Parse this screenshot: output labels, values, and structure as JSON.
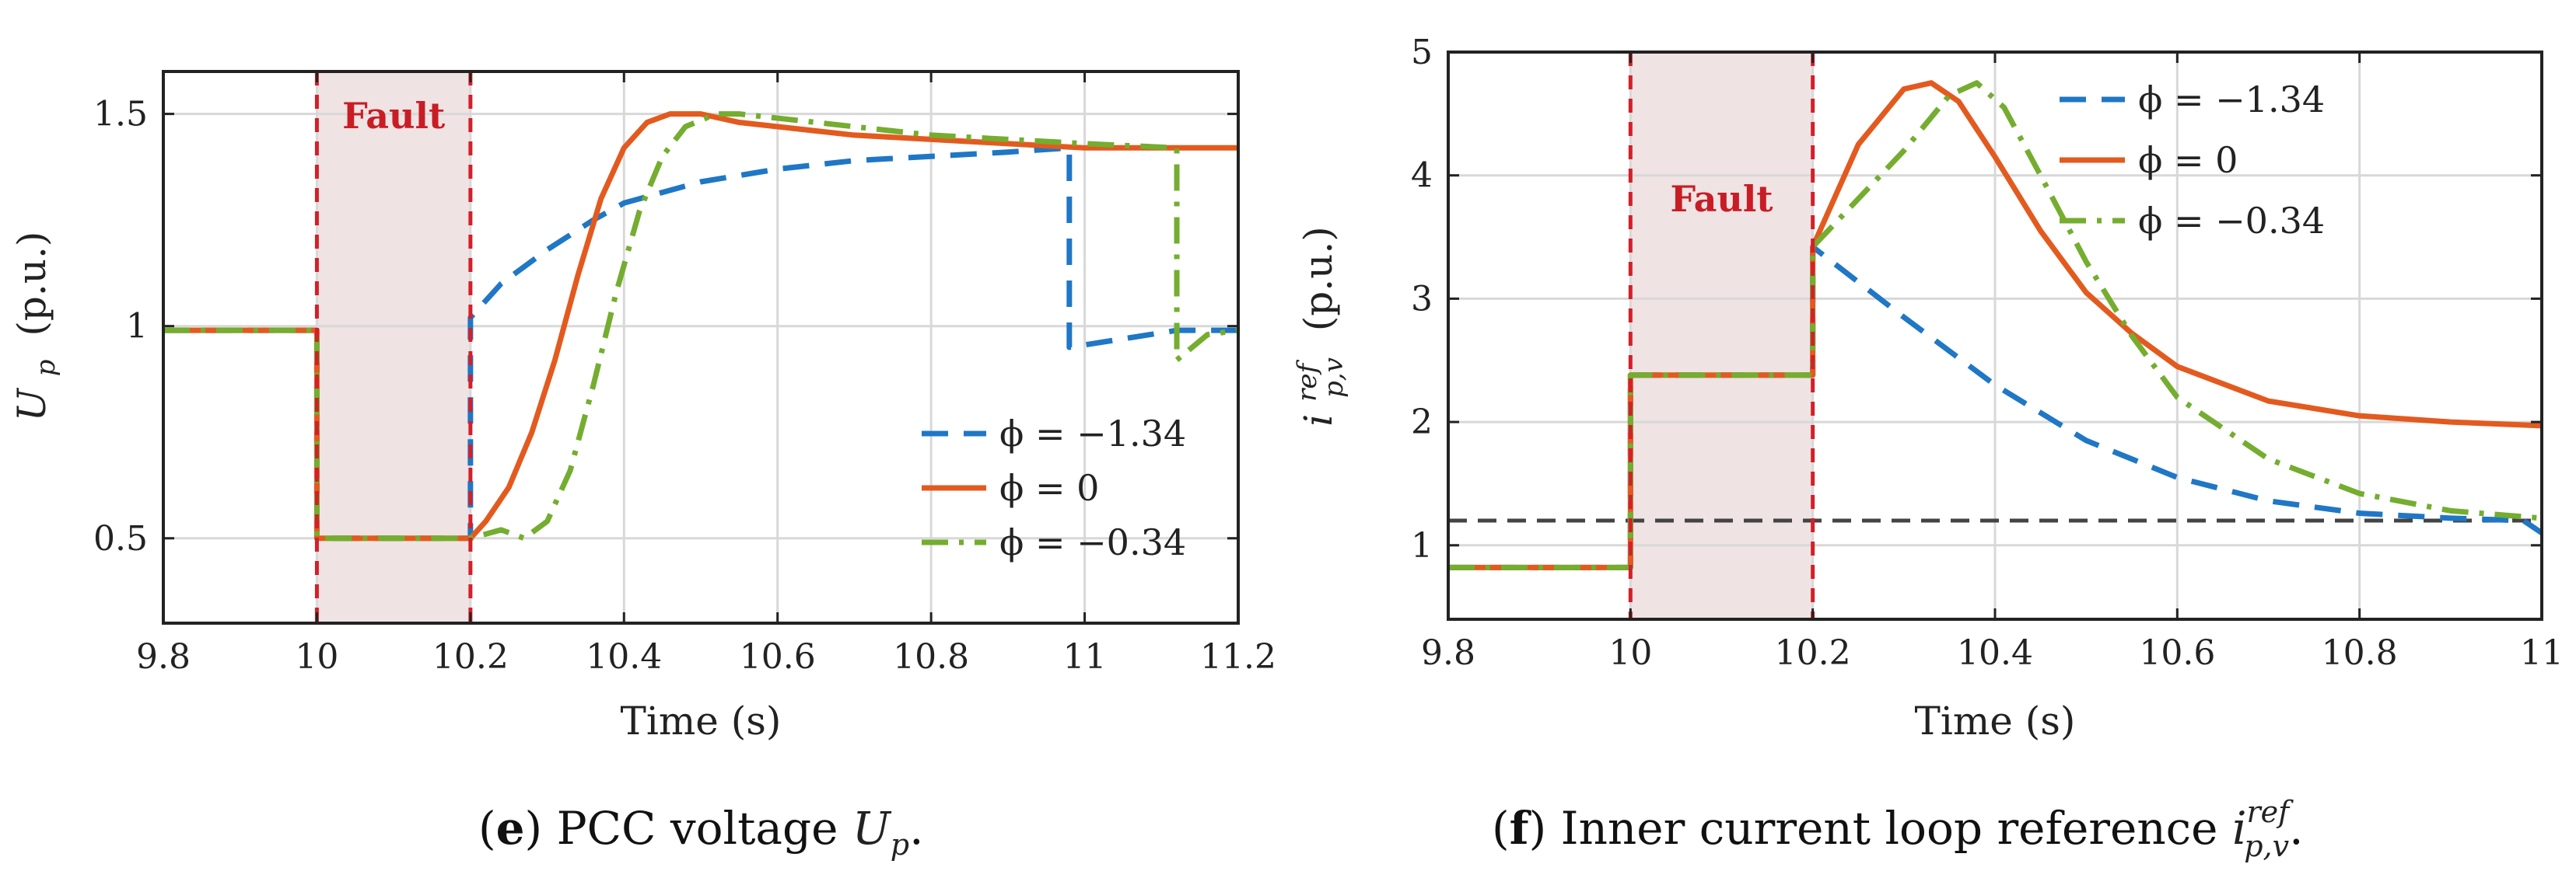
{
  "colors": {
    "blue": "#1f77c5",
    "orange": "#e35a1f",
    "green": "#74ad2f",
    "fault_line": "#d3202a",
    "fault_fill": "#efe3e3",
    "grid": "#d8d8d8",
    "axis": "#222222",
    "threshold": "#444444",
    "fault_text": "#c81d25"
  },
  "chart_data": [
    {
      "id": "e",
      "type": "line",
      "xlabel": "Time (s)",
      "ylabel_base": "U",
      "ylabel_sub": "p",
      "ylabel_unit": "(p.u.)",
      "xlim": [
        9.8,
        11.2
      ],
      "ylim": [
        0.3,
        1.6
      ],
      "xticks": [
        9.8,
        10.0,
        10.2,
        10.4,
        10.6,
        10.8,
        11.0,
        11.2
      ],
      "xtick_labels": [
        "9.8",
        "10",
        "10.2",
        "10.4",
        "10.6",
        "10.8",
        "11",
        "11.2"
      ],
      "yticks": [
        0.5,
        1.0,
        1.5
      ],
      "ytick_labels": [
        "0.5",
        "1",
        "1.5"
      ],
      "fault_window": [
        10.0,
        10.2
      ],
      "fault_label": "Fault",
      "legend_position": "bottom-right",
      "series": [
        {
          "name": "ϕ = −1.34",
          "color_key": "blue",
          "dash": "34 20",
          "x": [
            9.8,
            10.0,
            10.0,
            10.2,
            10.2,
            10.2,
            10.24,
            10.3,
            10.36,
            10.4,
            10.5,
            10.6,
            10.7,
            10.8,
            10.9,
            10.98,
            10.98,
            11.05,
            11.12,
            11.2
          ],
          "y": [
            0.99,
            0.99,
            0.5,
            0.5,
            0.8,
            1.02,
            1.1,
            1.18,
            1.25,
            1.29,
            1.34,
            1.37,
            1.39,
            1.4,
            1.41,
            1.42,
            0.95,
            0.97,
            0.99,
            0.99
          ]
        },
        {
          "name": "ϕ = 0",
          "color_key": "orange",
          "dash": "",
          "x": [
            9.8,
            10.0,
            10.0,
            10.2,
            10.22,
            10.25,
            10.28,
            10.31,
            10.34,
            10.37,
            10.4,
            10.43,
            10.46,
            10.5,
            10.55,
            10.6,
            10.7,
            10.8,
            10.9,
            11.0,
            11.1,
            11.2
          ],
          "y": [
            0.99,
            0.99,
            0.5,
            0.5,
            0.54,
            0.62,
            0.75,
            0.92,
            1.12,
            1.3,
            1.42,
            1.48,
            1.5,
            1.5,
            1.48,
            1.47,
            1.45,
            1.44,
            1.43,
            1.42,
            1.42,
            1.42
          ],
          "show_legend": true
        },
        {
          "name": "ϕ = −0.34",
          "color_key": "green",
          "dash": "34 14 6 14",
          "x": [
            9.8,
            10.0,
            10.0,
            10.2,
            10.24,
            10.27,
            10.3,
            10.33,
            10.36,
            10.39,
            10.42,
            10.45,
            10.48,
            10.52,
            10.55,
            10.6,
            10.7,
            10.8,
            10.9,
            11.0,
            11.12,
            11.12,
            11.16,
            11.2
          ],
          "y": [
            0.99,
            0.99,
            0.5,
            0.5,
            0.52,
            0.5,
            0.54,
            0.66,
            0.86,
            1.08,
            1.27,
            1.4,
            1.47,
            1.5,
            1.5,
            1.49,
            1.47,
            1.45,
            1.44,
            1.43,
            1.42,
            0.92,
            0.98,
            0.99
          ]
        }
      ]
    },
    {
      "id": "f",
      "type": "line",
      "xlabel": "Time (s)",
      "ylabel_base": "i",
      "ylabel_sup": "ref",
      "ylabel_sub": "p,v",
      "ylabel_unit": "(p.u.)",
      "xlim": [
        9.8,
        11.0
      ],
      "ylim": [
        0.4,
        5.0
      ],
      "xticks": [
        9.8,
        10.0,
        10.2,
        10.4,
        10.6,
        10.8,
        11.0
      ],
      "xtick_labels": [
        "9.8",
        "10",
        "10.2",
        "10.4",
        "10.6",
        "10.8",
        "11"
      ],
      "yticks": [
        1,
        2,
        3,
        4,
        5
      ],
      "ytick_labels": [
        "1",
        "2",
        "3",
        "4",
        "5"
      ],
      "fault_window": [
        10.0,
        10.2
      ],
      "fault_label": "Fault",
      "threshold": 1.2,
      "legend_position": "top-right",
      "series": [
        {
          "name": "ϕ = −1.34",
          "color_key": "blue",
          "dash": "34 20",
          "x": [
            9.8,
            10.0,
            10.0,
            10.2,
            10.2,
            10.3,
            10.4,
            10.5,
            10.6,
            10.7,
            10.8,
            10.9,
            10.98,
            11.0
          ],
          "y": [
            0.82,
            0.82,
            2.38,
            2.38,
            3.42,
            2.85,
            2.3,
            1.85,
            1.55,
            1.36,
            1.26,
            1.22,
            1.2,
            1.1
          ]
        },
        {
          "name": "ϕ = 0",
          "color_key": "orange",
          "dash": "",
          "x": [
            9.8,
            10.0,
            10.0,
            10.2,
            10.2,
            10.25,
            10.3,
            10.33,
            10.36,
            10.4,
            10.45,
            10.5,
            10.55,
            10.6,
            10.7,
            10.8,
            10.9,
            11.0
          ],
          "y": [
            0.82,
            0.82,
            2.38,
            2.38,
            3.42,
            4.25,
            4.7,
            4.75,
            4.6,
            4.15,
            3.55,
            3.05,
            2.72,
            2.45,
            2.17,
            2.05,
            2.0,
            1.97
          ]
        },
        {
          "name": "ϕ = −0.34",
          "color_key": "green",
          "dash": "34 14 6 14",
          "x": [
            9.8,
            10.0,
            10.0,
            10.2,
            10.2,
            10.3,
            10.35,
            10.38,
            10.41,
            10.45,
            10.5,
            10.55,
            10.6,
            10.7,
            10.8,
            10.9,
            11.0
          ],
          "y": [
            0.82,
            0.82,
            2.38,
            2.38,
            3.42,
            4.2,
            4.65,
            4.75,
            4.55,
            4.0,
            3.3,
            2.7,
            2.2,
            1.7,
            1.42,
            1.28,
            1.22
          ]
        }
      ]
    }
  ],
  "captions": [
    {
      "letter": "e",
      "text": " PCC voltage ",
      "math_base": "U",
      "math_sub": "p",
      "suffix": "."
    },
    {
      "letter": "f",
      "text": " Inner current loop reference ",
      "math_base": "i",
      "math_sup": "ref",
      "math_sub": "p,v",
      "suffix": "."
    }
  ]
}
